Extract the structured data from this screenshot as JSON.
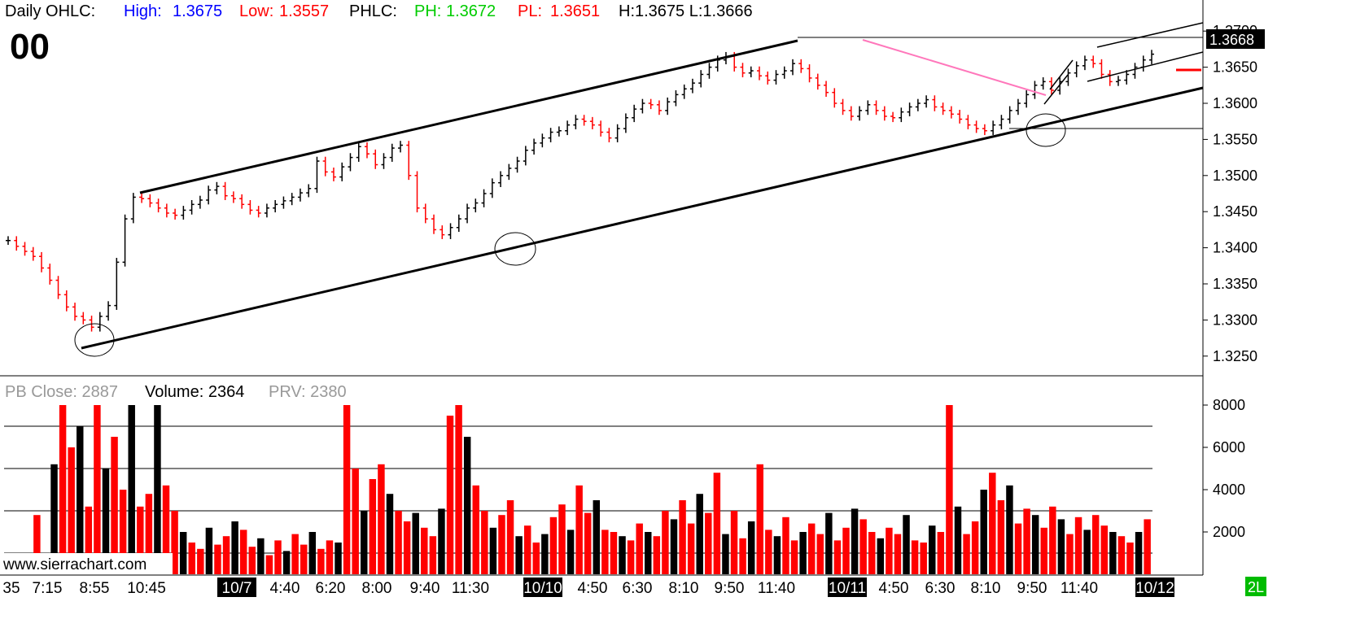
{
  "header": {
    "label": "Daily OHLC:",
    "high_label": "High:",
    "high_value": "1.3675",
    "low_label": "Low:",
    "low_value": "1.3557",
    "phlc_label": "PHLC:",
    "ph_label": "PH:",
    "ph_value": "1.3672",
    "pl_label": "PL:",
    "pl_value": "1.3651",
    "hl_text": "H:1.3675 L:1.3666",
    "big_number": "00"
  },
  "volume_header": {
    "pb_close": "PB Close: 2887",
    "volume": "Volume: 2364",
    "prv": "PRV: 2380"
  },
  "watermark": "www.sierrachart.com",
  "corner_label": "2L",
  "price_marker": "1.3668",
  "colors": {
    "up": "#000000",
    "down": "#ff0000",
    "high": "#0000ff",
    "low": "#ff0000",
    "ph": "#00cc00",
    "pl": "#ff0000",
    "trendline": "#000000",
    "pink_line": "#ff77bb",
    "price_marker_bg": "#000000",
    "corner_bg": "#00bb00"
  },
  "chart_data": [
    {
      "type": "candlestick",
      "ylim": [
        1.3225,
        1.3725
      ],
      "yticks": [
        "1.3700",
        "1.3650",
        "1.3600",
        "1.3550",
        "1.3500",
        "1.3450",
        "1.3400",
        "1.3350",
        "1.3300",
        "1.3250"
      ],
      "series": [
        {
          "values": [
            1.341,
            1.3402,
            1.3395,
            1.3388,
            1.3372,
            1.3355,
            1.3335,
            1.3318,
            1.3305,
            1.33,
            1.329,
            1.3305,
            1.332,
            1.338,
            1.344,
            1.347,
            1.3468,
            1.3462,
            1.3455,
            1.3448,
            1.3445,
            1.3452,
            1.346,
            1.3466,
            1.348,
            1.3485,
            1.3472,
            1.3468,
            1.346,
            1.3452,
            1.3448,
            1.3455,
            1.346,
            1.3465,
            1.347,
            1.3476,
            1.3482,
            1.352,
            1.3505,
            1.3498,
            1.3512,
            1.3525,
            1.354,
            1.353,
            1.3515,
            1.3525,
            1.3538,
            1.3542,
            1.35,
            1.3455,
            1.344,
            1.3425,
            1.3418,
            1.3428,
            1.344,
            1.3455,
            1.3462,
            1.3475,
            1.349,
            1.35,
            1.351,
            1.352,
            1.3535,
            1.3545,
            1.3552,
            1.356,
            1.3562,
            1.357,
            1.3578,
            1.3575,
            1.357,
            1.356,
            1.3552,
            1.3565,
            1.358,
            1.3592,
            1.36,
            1.3598,
            1.359,
            1.3602,
            1.3612,
            1.362,
            1.3628,
            1.364,
            1.365,
            1.366,
            1.3665,
            1.365,
            1.3642,
            1.3645,
            1.3638,
            1.3632,
            1.364,
            1.3645,
            1.3655,
            1.3648,
            1.3635,
            1.3625,
            1.3615,
            1.36,
            1.359,
            1.3582,
            1.359,
            1.3598,
            1.359,
            1.3582,
            1.358,
            1.3588,
            1.3595,
            1.36,
            1.3605,
            1.3595,
            1.359,
            1.3585,
            1.3578,
            1.357,
            1.3565,
            1.3562,
            1.357,
            1.3578,
            1.359,
            1.36,
            1.3612,
            1.3625,
            1.363,
            1.3618,
            1.363,
            1.3642,
            1.3652,
            1.366,
            1.3655,
            1.364,
            1.363,
            1.3632,
            1.364,
            1.365,
            1.366,
            1.3668
          ]
        }
      ]
    },
    {
      "type": "bar",
      "ylim": [
        0,
        8000
      ],
      "yticks": [
        "8000",
        "6000",
        "4000",
        "2000"
      ],
      "xticks": [
        "35",
        "7:15",
        "8:55",
        "10:45",
        "10/7",
        "4:40",
        "6:20",
        "8:00",
        "9:40",
        "11:30",
        "10/10",
        "4:50",
        "6:30",
        "8:10",
        "9:50",
        "11:40",
        "10/11",
        "4:50",
        "6:30",
        "8:10",
        "9:50",
        "11:40",
        "10/12"
      ],
      "series": [
        {
          "values": [
            400,
            200,
            2800,
            300,
            5200,
            8000,
            6000,
            7000,
            3200,
            8000,
            5000,
            6500,
            4000,
            8000,
            3200,
            3800,
            8000,
            4200,
            3000,
            2000,
            1500,
            1200,
            2200,
            1400,
            1800,
            2500,
            2100,
            1300,
            1700,
            900,
            1600,
            1100,
            1900,
            1400,
            2000,
            1200,
            1600,
            1500,
            8000,
            5000,
            3000,
            4500,
            5200,
            3800,
            3000,
            2500,
            2900,
            2200,
            1800,
            3100,
            7500,
            8000,
            6500,
            4200,
            3000,
            2200,
            2800,
            3500,
            1800,
            2300,
            1500,
            1900,
            2700,
            3300,
            2100,
            4200,
            2900,
            3500,
            2100,
            2000,
            1800,
            1600,
            2400,
            2000,
            1800,
            3000,
            2600,
            3500,
            2400,
            3800,
            2900,
            4800,
            1900,
            3000,
            1700,
            2500,
            5200,
            2100,
            1800,
            2700,
            1600,
            2000,
            2400,
            1900,
            2900,
            1600,
            2200,
            3100,
            2600,
            2000,
            1700,
            2200,
            1900,
            2800,
            1600,
            1500,
            2300,
            2000,
            8000,
            3200,
            1900,
            2500,
            4000,
            4800,
            3500,
            4200,
            2400,
            3100,
            2800,
            2200,
            3200,
            2600,
            1900,
            2700,
            2100,
            2800,
            2300,
            2000,
            1800,
            1500,
            2000,
            2600
          ]
        }
      ]
    }
  ]
}
